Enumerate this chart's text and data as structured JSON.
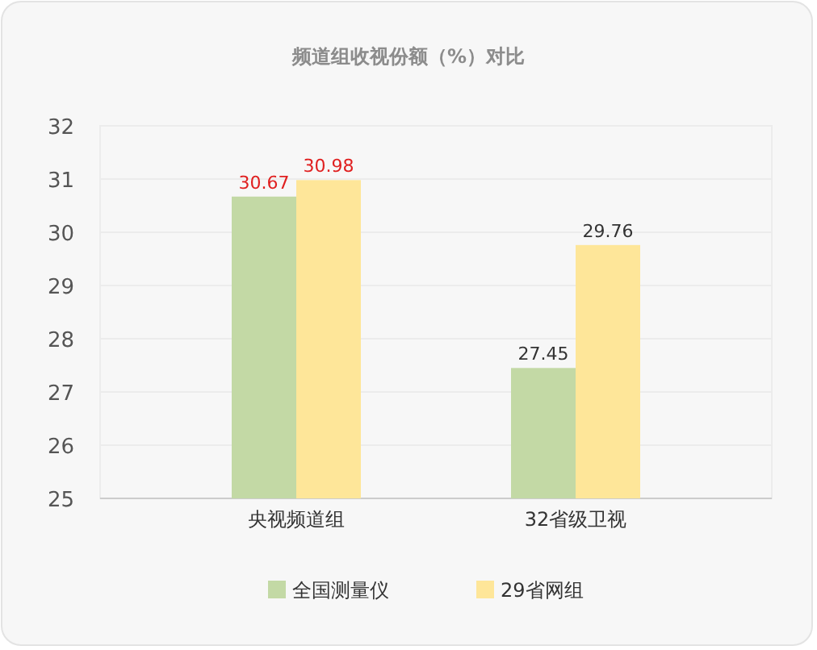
{
  "chart_data": {
    "type": "bar",
    "title": "频道组收视份额（%）对比",
    "categories": [
      "央视频道组",
      "32省级卫视"
    ],
    "series": [
      {
        "name": "全国测量仪",
        "color": "#c3d9a5",
        "values": [
          30.67,
          27.45
        ]
      },
      {
        "name": "29省网组",
        "color": "#fee699",
        "values": [
          30.98,
          29.76
        ]
      }
    ],
    "ylim": [
      25,
      32
    ],
    "yticks": [
      25,
      26,
      27,
      28,
      29,
      30,
      31,
      32
    ],
    "grid": "y",
    "legend": "bottom",
    "data_labels": true
  }
}
